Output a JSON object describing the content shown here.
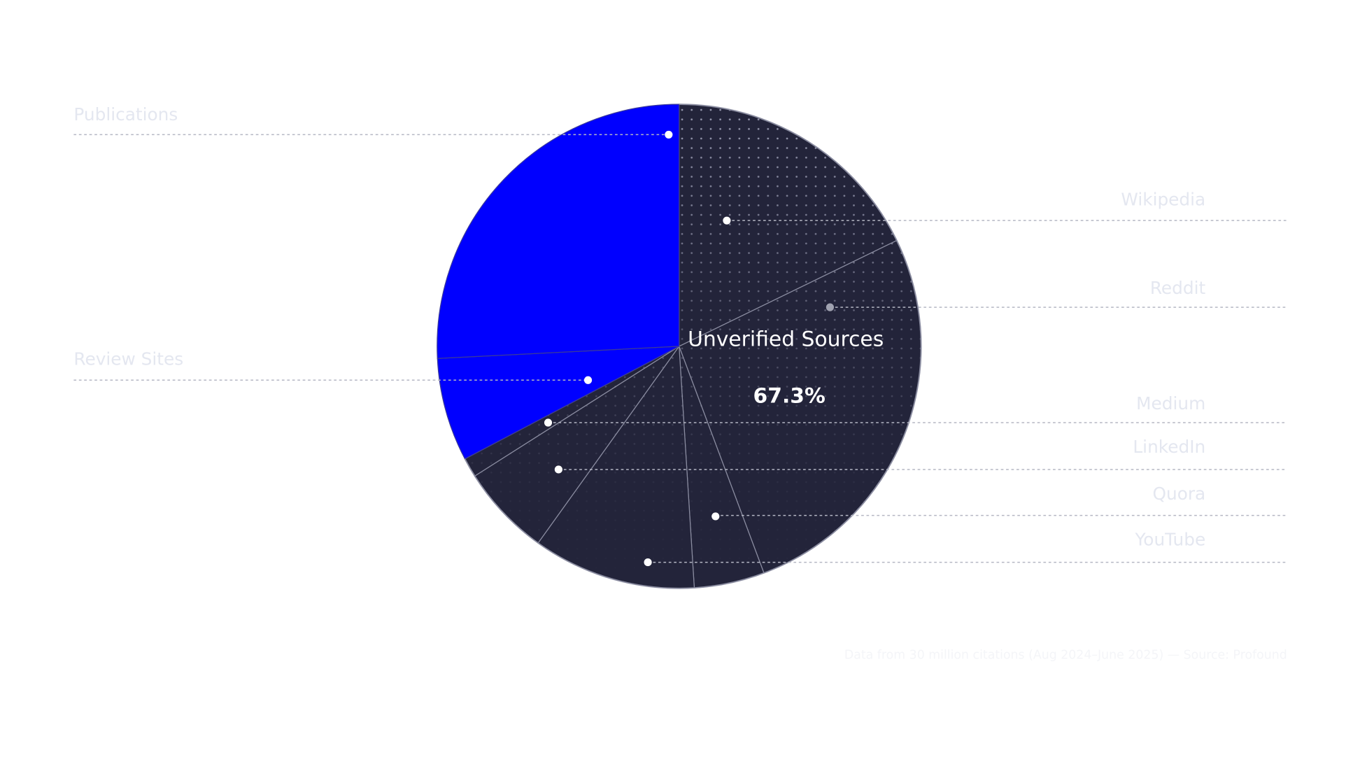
{
  "chart_data": {
    "type": "pie",
    "categories": [
      "Wikipedia",
      "Reddit",
      "Quora",
      "YouTube",
      "LinkedIn",
      "Medium",
      "Review Sites",
      "Publications"
    ],
    "values": [
      17.8,
      26.5,
      4.7,
      10.9,
      6.1,
      1.3,
      6.9,
      25.8
    ],
    "colors": [
      "#23243a",
      "#23243a",
      "#23243a",
      "#23243a",
      "#23243a",
      "#23243a",
      "#0000ff",
      "#0000ff"
    ],
    "annotation": {
      "text": "Unverified Sources",
      "value": 67.3,
      "label": "67.3%"
    },
    "note": "Data from 30 million citations (Aug 2024–June 2025) — Source: Profound"
  }
}
